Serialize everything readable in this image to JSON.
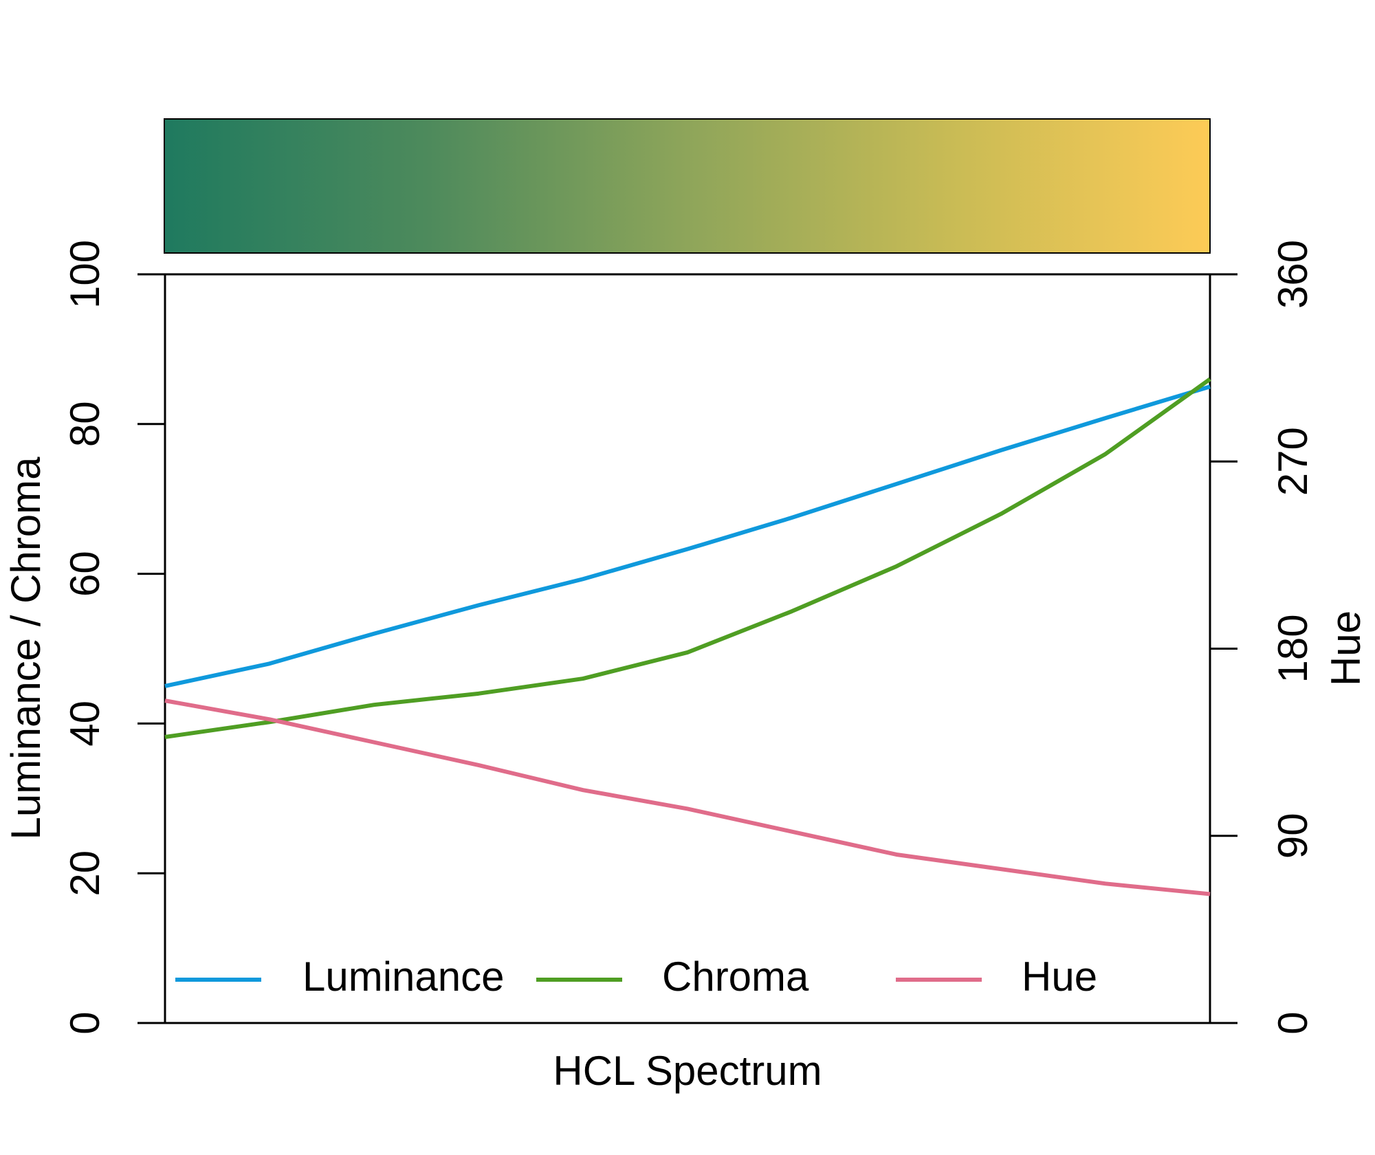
{
  "chart_data": {
    "type": "line",
    "xlabel": "HCL Spectrum",
    "ylabel": "Luminance / Chroma",
    "y2label": "Hue",
    "ylim": [
      0,
      100
    ],
    "yticks": [
      0,
      20,
      40,
      60,
      80,
      100
    ],
    "y2lim": [
      0,
      360
    ],
    "y2ticks": [
      0,
      90,
      180,
      270,
      360
    ],
    "legend": "bottom",
    "series": [
      {
        "name": "Luminance",
        "color": "#0f99dc",
        "values": [
          45,
          48,
          52,
          55.8,
          59.3,
          63.3,
          67.5,
          72,
          76.5,
          80.8,
          85
        ]
      },
      {
        "name": "Chroma",
        "color": "#4f9e23",
        "values": [
          38.2,
          40.2,
          42.5,
          44,
          46,
          49.5,
          55,
          61,
          68,
          76,
          86
        ]
      },
      {
        "name": "Hue",
        "color": "#e06c8a",
        "axis": "y2",
        "values": [
          155,
          146,
          135,
          124,
          112,
          103,
          92,
          81,
          74,
          67,
          62
        ]
      }
    ]
  }
}
